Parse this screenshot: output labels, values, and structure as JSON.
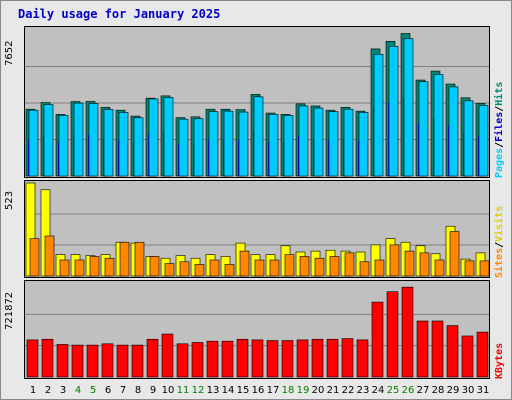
{
  "title": "Daily usage for January 2025",
  "colors": {
    "hits": "#00ccff",
    "files": "#008877",
    "pages": "#0000cc",
    "visits": "#ff8800",
    "sites": "#ffff00",
    "kbytes": "#ff0000",
    "weekend_label": "#008000",
    "weekday_label": "#000000",
    "panel_bg": "#c0c0c0",
    "title": "#0000c8"
  },
  "chart_data": [
    {
      "type": "bar",
      "name": "hits-files-pages",
      "ymax_label": "7652",
      "ylim": [
        0,
        7652
      ],
      "legend": {
        "pages": "Pages",
        "files": "Files",
        "hits": "Hits",
        "sep": "/"
      },
      "categories": [
        "1",
        "2",
        "3",
        "4",
        "5",
        "6",
        "7",
        "8",
        "9",
        "10",
        "11",
        "12",
        "13",
        "14",
        "15",
        "16",
        "17",
        "18",
        "19",
        "20",
        "21",
        "22",
        "23",
        "24",
        "25",
        "26",
        "27",
        "28",
        "29",
        "30",
        "31"
      ],
      "series": [
        {
          "name": "Hits",
          "values": [
            3450,
            3750,
            3180,
            3820,
            3800,
            3480,
            3330,
            3050,
            4040,
            4120,
            2980,
            3000,
            3370,
            3400,
            3350,
            4150,
            3230,
            3180,
            3670,
            3560,
            3370,
            3500,
            3330,
            6380,
            6800,
            7200,
            4940,
            5320,
            4670,
            3940,
            3700
          ]
        },
        {
          "name": "Files",
          "values": [
            3500,
            3850,
            3230,
            3900,
            3910,
            3600,
            3450,
            3140,
            4080,
            4200,
            3060,
            3100,
            3500,
            3500,
            3480,
            4280,
            3300,
            3230,
            3780,
            3670,
            3450,
            3600,
            3400,
            6660,
            7060,
            7470,
            5030,
            5500,
            4820,
            4100,
            3800
          ]
        },
        {
          "name": "Pages",
          "values": [
            3500,
            3850,
            3230,
            3900,
            3910,
            3600,
            3450,
            3140,
            4080,
            4200,
            3060,
            3100,
            3500,
            3500,
            3480,
            4280,
            3300,
            3230,
            3780,
            3670,
            3450,
            3600,
            3400,
            6660,
            7060,
            7470,
            5030,
            5500,
            4820,
            4100,
            3800
          ]
        }
      ]
    },
    {
      "type": "bar",
      "name": "sites-visits",
      "ymax_label": "523",
      "ylim": [
        0,
        523
      ],
      "legend": {
        "sites": "Sites",
        "visits": "Visits",
        "sep": "/"
      },
      "series": [
        {
          "name": "Visits",
          "values": [
            210,
            225,
            90,
            90,
            110,
            100,
            190,
            190,
            110,
            70,
            80,
            65,
            90,
            65,
            140,
            90,
            90,
            120,
            110,
            100,
            110,
            130,
            80,
            90,
            175,
            140,
            130,
            90,
            250,
            85,
            85
          ]
        },
        {
          "name": "Sites",
          "values": [
            523,
            485,
            120,
            120,
            115,
            120,
            190,
            185,
            110,
            100,
            115,
            100,
            120,
            110,
            185,
            120,
            120,
            170,
            135,
            140,
            145,
            140,
            135,
            175,
            210,
            190,
            170,
            125,
            280,
            95,
            130
          ]
        }
      ]
    },
    {
      "type": "bar",
      "name": "kbytes",
      "ymax_label": "721872",
      "ylim": [
        0,
        721872
      ],
      "legend": {
        "kbytes": "KBytes"
      },
      "series": [
        {
          "name": "KBytes",
          "values": [
            285000,
            290000,
            250000,
            245000,
            245000,
            255000,
            245000,
            245000,
            290000,
            330000,
            255000,
            265000,
            275000,
            275000,
            290000,
            285000,
            280000,
            280000,
            285000,
            290000,
            290000,
            295000,
            285000,
            575000,
            655000,
            690000,
            430000,
            430000,
            395000,
            315000,
            345000
          ]
        }
      ]
    }
  ],
  "x_axis": {
    "labels": [
      "1",
      "2",
      "3",
      "4",
      "5",
      "6",
      "7",
      "8",
      "9",
      "10",
      "11",
      "12",
      "13",
      "14",
      "15",
      "16",
      "17",
      "18",
      "19",
      "20",
      "21",
      "22",
      "23",
      "24",
      "25",
      "26",
      "27",
      "28",
      "29",
      "30",
      "31"
    ],
    "weekend": [
      false,
      false,
      false,
      true,
      true,
      false,
      false,
      false,
      false,
      false,
      true,
      true,
      false,
      false,
      false,
      false,
      false,
      true,
      true,
      false,
      false,
      false,
      false,
      false,
      true,
      true,
      false,
      false,
      false,
      false,
      false
    ]
  }
}
